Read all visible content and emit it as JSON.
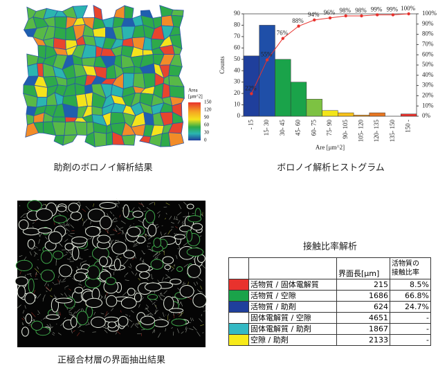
{
  "chart_data": {
    "type": "bar",
    "categories": [
      "- 15",
      "15- 30",
      "30- 45",
      "45- 60",
      "60- 75",
      "75- 90",
      "90- 105",
      "105- 120",
      "120- 135",
      "135- 150",
      "150 -"
    ],
    "series": [
      {
        "colors": [
          "#1f3f9c",
          "#1f4fa8",
          "#1aa34a",
          "#1aa34a",
          "#7dc242",
          "#f2e51a",
          "#f7c21a",
          "#f29a1e",
          "#e87722",
          "#e8582a",
          "#e8322d"
        ],
        "values": [
          53,
          80,
          50,
          30,
          15,
          5,
          3,
          1,
          3,
          0,
          2
        ]
      },
      {
        "type": "line",
        "axis": "y2",
        "color": "#e8322d",
        "values": [
          22,
          55,
          76,
          88,
          94,
          96,
          98,
          98,
          99,
          99,
          100
        ],
        "value_labels": [
          "22%",
          "55%",
          "76%",
          "88%",
          "94%",
          "96%",
          "98%",
          "98%",
          "99%",
          "99%",
          "100%"
        ]
      }
    ],
    "ylabel": "Counts",
    "xlabel": "Are [μm^2]",
    "ylim": [
      0,
      90
    ],
    "yticks": [
      0,
      10,
      20,
      30,
      40,
      50,
      60,
      70,
      80,
      90
    ],
    "y2lim": [
      0,
      100
    ],
    "y2ticks": [
      {
        "value": 0,
        "label": "0%"
      },
      {
        "value": 10,
        "label": "10%"
      },
      {
        "value": 20,
        "label": "20%"
      },
      {
        "value": 30,
        "label": "30%"
      },
      {
        "value": 40,
        "label": "40%"
      },
      {
        "value": 50,
        "label": "50%"
      },
      {
        "value": 60,
        "label": "60%"
      },
      {
        "value": 70,
        "label": "70%"
      },
      {
        "value": 80,
        "label": "80%"
      },
      {
        "value": 90,
        "label": "90%"
      },
      {
        "value": 100,
        "label": "100%"
      }
    ],
    "caption": "ボロノイ解析ヒストグラム"
  },
  "voronoi_image": {
    "caption": "助剤のボロノイ解析結果",
    "colorbar_title": [
      "Area",
      "[μm^2]"
    ],
    "clim": [
      0,
      150
    ],
    "colorbar_ticks": [
      150,
      120,
      90,
      60,
      30,
      0
    ]
  },
  "interface_image": {
    "caption": "正極合材層の界面抽出結果"
  },
  "table": {
    "title": "接触比率解析",
    "header": [
      "",
      "",
      "界面長[μm]",
      [
        "活物質の",
        "接触比率"
      ]
    ],
    "rows": [
      {
        "color": "#e8322d",
        "cells": [
          "活物質 / 固体電解質",
          "215",
          "8.5%"
        ]
      },
      {
        "color": "#1aa34a",
        "cells": [
          "活物質 / 空隙",
          "1686",
          "66.8%"
        ]
      },
      {
        "color": "#1f3f9c",
        "cells": [
          "活物質 / 助剤",
          "624",
          "24.7%"
        ]
      },
      {
        "color": "#ffffff",
        "cells": [
          "固体電解質 / 空隙",
          "4651",
          "-"
        ]
      },
      {
        "color": "#35b9c4",
        "cells": [
          "固体電解質 / 助剤",
          "1867",
          "-"
        ]
      },
      {
        "color": "#f7ea1a",
        "cells": [
          "空隙 / 助剤",
          "2133",
          "-"
        ]
      }
    ]
  }
}
